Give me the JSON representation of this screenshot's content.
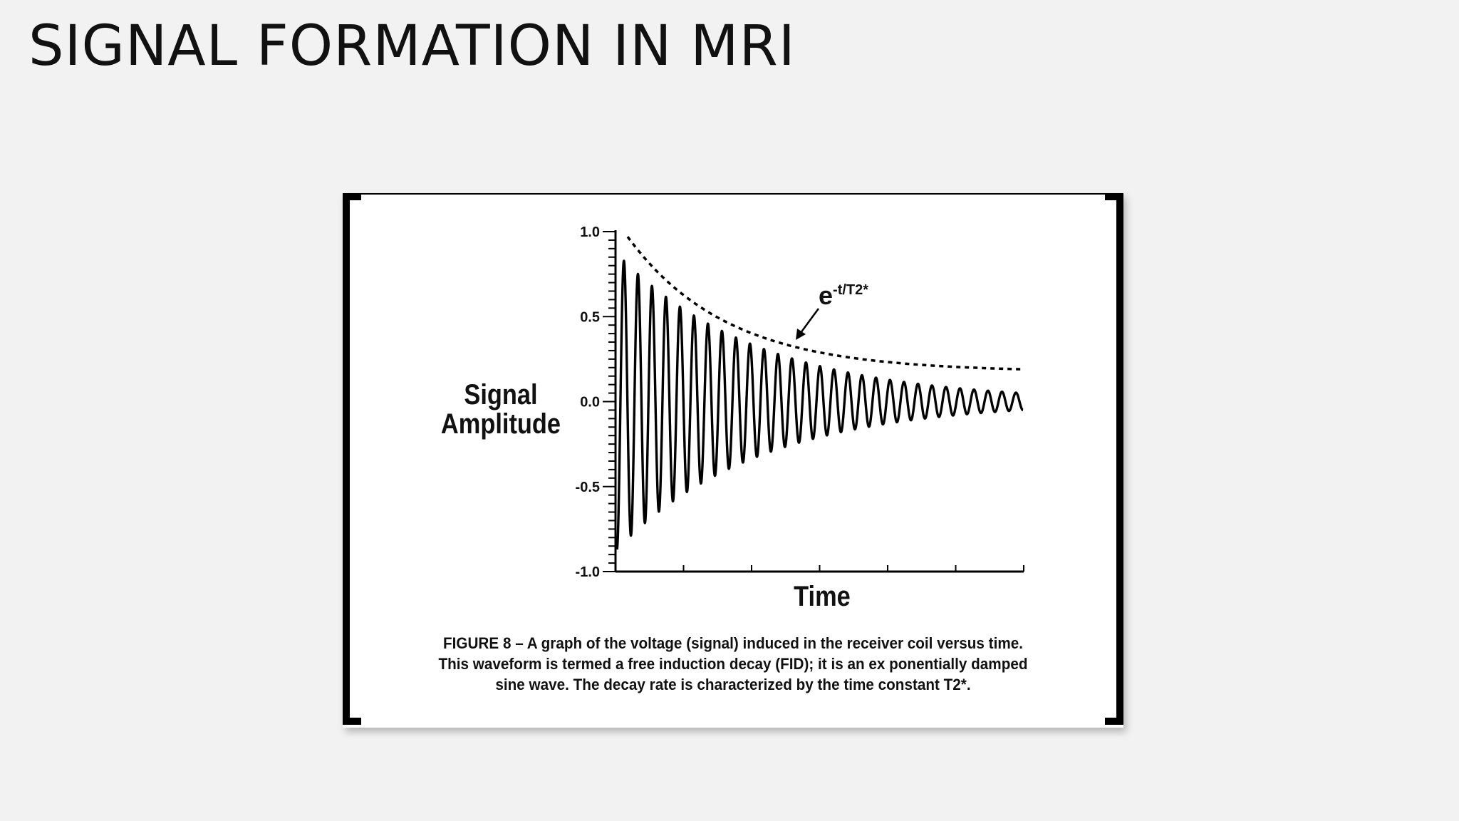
{
  "slide": {
    "title": "SIGNAL FORMATION IN MRI"
  },
  "chart_data": {
    "type": "line",
    "title": "",
    "xlabel": "Time",
    "ylabel": [
      "Signal",
      "Amplitude"
    ],
    "ylim": [
      -1.0,
      1.0
    ],
    "yticks": [
      "1.0",
      "0.5",
      "0.0",
      "-0.5",
      "-1.0"
    ],
    "xticks": [],
    "grid": false,
    "series": [
      {
        "kind": "damped-sine",
        "style": "solid",
        "amplitude0": 0.87,
        "amplitude_end": 0.05,
        "cycles": 29,
        "color": "#000000"
      },
      {
        "kind": "envelope",
        "style": "dashed",
        "y0": 0.97,
        "y_end": 0.19,
        "color": "#000000"
      }
    ],
    "annotation": {
      "base": "e",
      "exponent": "-t/T2*"
    }
  },
  "figure": {
    "caption": [
      "FIGURE 8 – A graph of the voltage (signal) induced in the receiver coil versus time.",
      "This waveform is termed a free induction decay (FID); it is an ex ponentially damped",
      "sine wave. The decay rate is characterized by the time constant T2*."
    ]
  }
}
